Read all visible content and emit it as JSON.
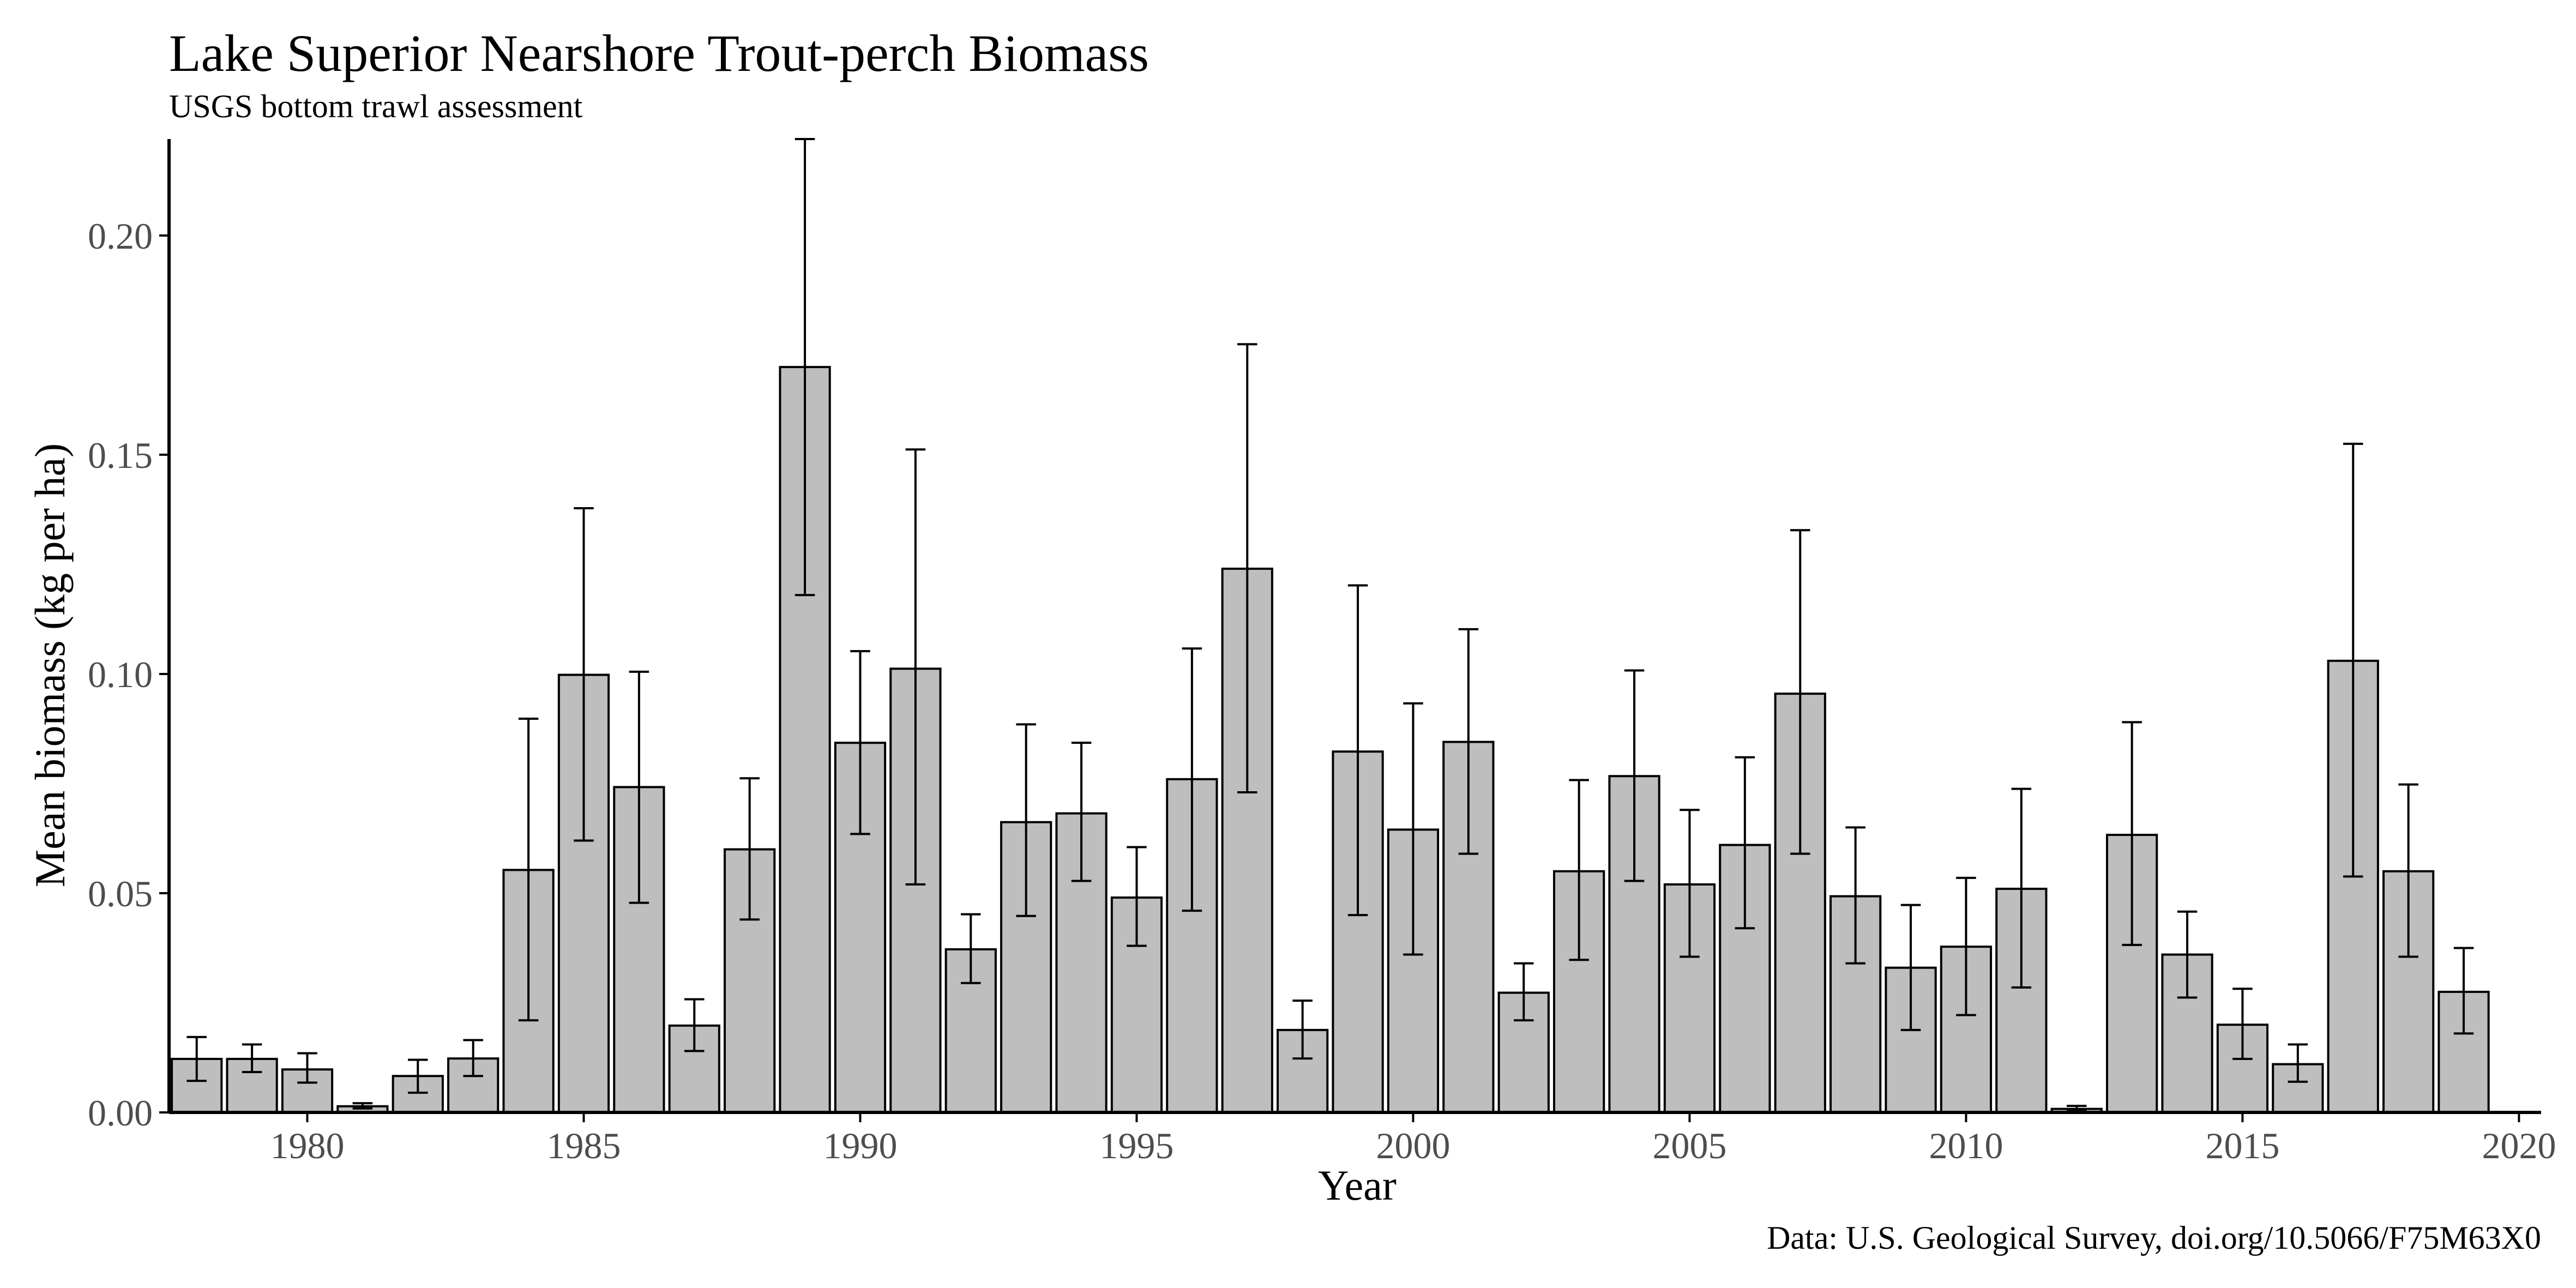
{
  "chart_data": {
    "type": "bar",
    "title": "Lake Superior Nearshore Trout-perch Biomass",
    "subtitle": "USGS bottom trawl assessment",
    "caption": "Data: U.S. Geological Survey, doi.org/10.5066/F75M63X0",
    "xlabel": "Year",
    "ylabel": "Mean biomass (kg per ha)",
    "xlim": [
      1977.5,
      2020.4
    ],
    "ylim": [
      0,
      0.222
    ],
    "x_ticks": [
      1980,
      1985,
      1990,
      1995,
      2000,
      2005,
      2010,
      2015,
      2020
    ],
    "x_tick_labels": [
      "1980",
      "1985",
      "1990",
      "1995",
      "2000",
      "2005",
      "2010",
      "2015",
      "2020"
    ],
    "y_ticks": [
      0,
      0.05,
      0.1,
      0.15,
      0.2
    ],
    "y_tick_labels": [
      "0.00",
      "0.05",
      "0.10",
      "0.15",
      "0.20"
    ],
    "grid": false,
    "legend": "none",
    "bar_color": "#bebebe",
    "x": [
      1978,
      1979,
      1980,
      1981,
      1982,
      1983,
      1984,
      1985,
      1986,
      1987,
      1988,
      1989,
      1990,
      1991,
      1992,
      1993,
      1994,
      1995,
      1996,
      1997,
      1998,
      1999,
      2000,
      2001,
      2002,
      2003,
      2004,
      2005,
      2006,
      2007,
      2008,
      2009,
      2010,
      2011,
      2012,
      2013,
      2014,
      2015,
      2016,
      2017,
      2018,
      2019
    ],
    "values": [
      0.0122,
      0.0122,
      0.0098,
      0.0014,
      0.0083,
      0.0123,
      0.0553,
      0.0998,
      0.0742,
      0.0198,
      0.06,
      0.17,
      0.0843,
      0.1012,
      0.0372,
      0.0662,
      0.0682,
      0.049,
      0.076,
      0.124,
      0.0188,
      0.0823,
      0.0645,
      0.0845,
      0.0273,
      0.055,
      0.0767,
      0.052,
      0.061,
      0.0955,
      0.0493,
      0.033,
      0.0378,
      0.051,
      0.0008,
      0.0633,
      0.036,
      0.02,
      0.011,
      0.103,
      0.055,
      0.0275
    ],
    "error_low": [
      0.0072,
      0.0092,
      0.0068,
      0.0009,
      0.0045,
      0.0083,
      0.021,
      0.062,
      0.0478,
      0.014,
      0.044,
      0.118,
      0.0635,
      0.052,
      0.0295,
      0.0448,
      0.0528,
      0.038,
      0.046,
      0.073,
      0.0123,
      0.045,
      0.036,
      0.059,
      0.021,
      0.0348,
      0.0528,
      0.0355,
      0.042,
      0.059,
      0.034,
      0.0188,
      0.0222,
      0.0285,
      0.0003,
      0.0382,
      0.0262,
      0.0122,
      0.007,
      0.0538,
      0.0355,
      0.018
    ],
    "error_high": [
      0.0172,
      0.0155,
      0.0135,
      0.0021,
      0.012,
      0.0165,
      0.0898,
      0.1378,
      0.1005,
      0.0258,
      0.0762,
      0.222,
      0.1052,
      0.1512,
      0.0452,
      0.0885,
      0.0843,
      0.0605,
      0.1058,
      0.1752,
      0.0255,
      0.1202,
      0.0933,
      0.1102,
      0.034,
      0.0758,
      0.1008,
      0.069,
      0.081,
      0.1328,
      0.065,
      0.0473,
      0.0535,
      0.0738,
      0.0015,
      0.089,
      0.0458,
      0.0282,
      0.0155,
      0.1525,
      0.0748,
      0.0375
    ]
  }
}
